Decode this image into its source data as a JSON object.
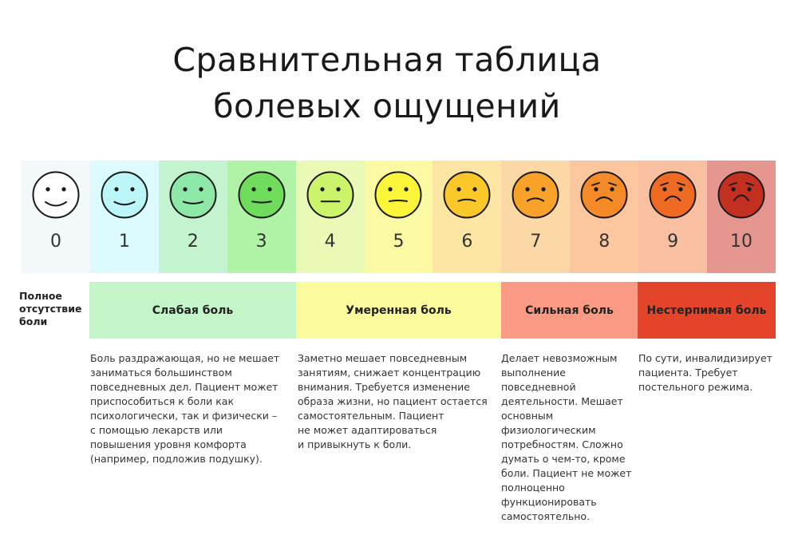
{
  "title_line1": "Сравнительная таблица",
  "title_line2": "болевых ощущений",
  "levels": [
    {
      "value": "0",
      "color": "#f3f8fb",
      "face": "#ffffff"
    },
    {
      "value": "1",
      "color": "#dbfbfe",
      "face": "#bdf6f9"
    },
    {
      "value": "2",
      "color": "#c4f3cf",
      "face": "#8ee8a8"
    },
    {
      "value": "3",
      "color": "#b0f2a6",
      "face": "#6fdc5b"
    },
    {
      "value": "4",
      "color": "#eafab6",
      "face": "#ccf46b"
    },
    {
      "value": "5",
      "color": "#fbf9a4",
      "face": "#fbf53a"
    },
    {
      "value": "6",
      "color": "#fde6a4",
      "face": "#fbc829"
    },
    {
      "value": "7",
      "color": "#fdd8a7",
      "face": "#f9a22a"
    },
    {
      "value": "8",
      "color": "#fcc69e",
      "face": "#f58a28"
    },
    {
      "value": "9",
      "color": "#f8bfa0",
      "face": "#ef6a22"
    },
    {
      "value": "10",
      "color": "#e5968e",
      "face": "#c43020"
    }
  ],
  "none_label": "Полное отсутствие боли",
  "bands": [
    {
      "label": "Слабая боль",
      "color": "#c3f5c9"
    },
    {
      "label": "Умеренная боль",
      "color": "#fbfb9e"
    },
    {
      "label": "Сильная боль",
      "color": "#fa9984"
    },
    {
      "label": "Нестерпимая боль",
      "color": "#e3442a"
    }
  ],
  "descriptions": [
    "Боль раздражающая, но не мешает\nзаниматься большинством\nповседневных дел. Пациент может\nприспособиться к боли как\nпсихологически, так и физически –\nс помощью лекарств или\nповышения уровня комфорта\n(например, подложив подушку).",
    "Заметно мешает повседневным\nзанятиям, снижает концентрацию\nвнимания. Требуется изменение\nобраза жизни, но пациент остается\nсамостоятельным. Пациент\nне может адаптироваться\nи привыкнуть к боли.",
    "Делает невозможным\nвыполнение\nповседневной\nдеятельности. Мешает\nосновным\nфизиологическим\nпотребностям. Сложно\nдумать о чем-то, кроме\nболи. Пациент не может\nполноценно\nфункционировать\nсамостоятельно.",
    "По сути, инвалидизирует\nпациента. Требует\nпостельного режима."
  ]
}
